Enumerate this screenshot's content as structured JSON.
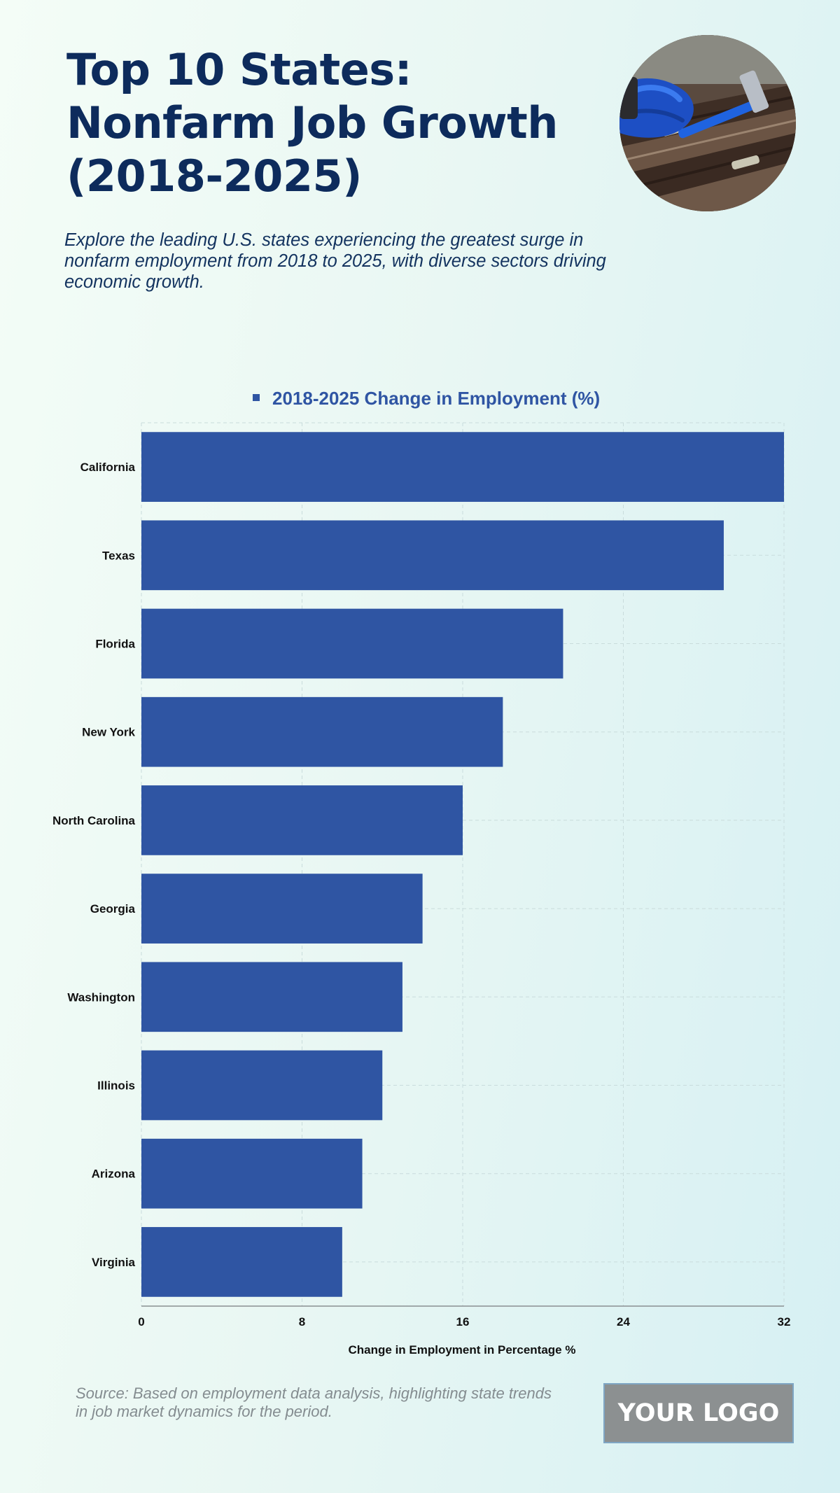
{
  "header": {
    "title": "Top 10 States: Nonfarm Job Growth (2018-2025)",
    "subtitle": "Explore the leading U.S. states experiencing the greatest surge in nonfarm employment from 2018 to 2025, with diverse sectors driving economic growth.",
    "photo_icon": "gloved-hand-hammer-icon"
  },
  "chart_data": {
    "type": "bar",
    "orientation": "horizontal",
    "categories": [
      "California",
      "Texas",
      "Florida",
      "New York",
      "North Carolina",
      "Georgia",
      "Washington",
      "Illinois",
      "Arizona",
      "Virginia"
    ],
    "series": [
      {
        "name": "2018-2025 Change in Employment (%)",
        "values": [
          32,
          29,
          21,
          18,
          16,
          14,
          13,
          12,
          11,
          10
        ]
      }
    ],
    "xlabel": "Change in Employment in Percentage %",
    "ylabel": "",
    "xlim": [
      0,
      32
    ],
    "xticks": [
      0,
      8,
      16,
      24,
      32
    ],
    "grid": true,
    "legend_position": "top-center",
    "colors": {
      "bar": "#2f55a3",
      "legend_text": "#2f55a3",
      "grid": "#c9dcdc",
      "axis": "#8a8f92",
      "label": "#111111"
    }
  },
  "footer": {
    "source": "Source: Based on employment data analysis, highlighting state trends in job market dynamics for the period.",
    "logo_text": "YOUR LOGO"
  }
}
